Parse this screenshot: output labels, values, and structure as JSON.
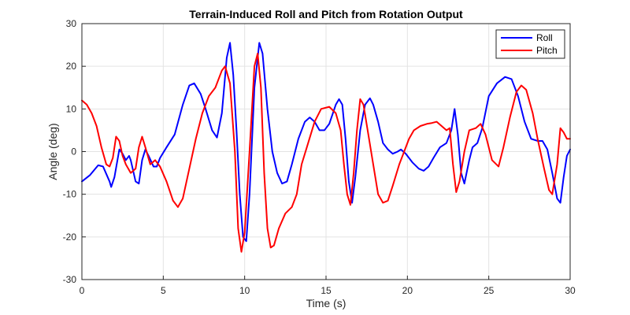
{
  "chart_data": {
    "type": "line",
    "title": "Terrain-Induced Roll and Pitch from Rotation Output",
    "xlabel": "Time (s)",
    "ylabel": "Angle (deg)",
    "xlim": [
      0,
      30
    ],
    "ylim": [
      -30,
      30
    ],
    "xticks": [
      0,
      5,
      10,
      15,
      20,
      25,
      30
    ],
    "yticks": [
      -30,
      -20,
      -10,
      0,
      10,
      20,
      30
    ],
    "xtick_labels": [
      "0",
      "5",
      "10",
      "15",
      "20",
      "25",
      "30"
    ],
    "ytick_labels": [
      "-30",
      "-20",
      "-10",
      "0",
      "10",
      "20",
      "30"
    ],
    "grid": true,
    "legend_position": "top-right",
    "series": [
      {
        "name": "Roll",
        "color": "#0000ff",
        "points": [
          [
            0,
            -7
          ],
          [
            0.5,
            -5.5
          ],
          [
            1,
            -3.2
          ],
          [
            1.3,
            -3.5
          ],
          [
            1.7,
            -7
          ],
          [
            1.8,
            -8.3
          ],
          [
            2,
            -6
          ],
          [
            2.3,
            0.5
          ],
          [
            2.5,
            -0.5
          ],
          [
            2.7,
            -2
          ],
          [
            2.9,
            -1
          ],
          [
            3,
            -2
          ],
          [
            3.3,
            -7
          ],
          [
            3.5,
            -7.5
          ],
          [
            3.7,
            -2
          ],
          [
            3.9,
            0.5
          ],
          [
            4.1,
            -1
          ],
          [
            4.4,
            -3.5
          ],
          [
            4.6,
            -3.5
          ],
          [
            4.8,
            -1.5
          ],
          [
            5.2,
            1
          ],
          [
            5.7,
            4
          ],
          [
            6.2,
            11
          ],
          [
            6.6,
            15.5
          ],
          [
            6.9,
            16
          ],
          [
            7.3,
            13.5
          ],
          [
            7.6,
            10
          ],
          [
            8,
            5
          ],
          [
            8.3,
            3.3
          ],
          [
            8.6,
            9
          ],
          [
            8.9,
            22
          ],
          [
            9.1,
            25.5
          ],
          [
            9.3,
            18
          ],
          [
            9.5,
            5
          ],
          [
            9.7,
            -10
          ],
          [
            9.9,
            -20
          ],
          [
            10.1,
            -21
          ],
          [
            10.3,
            -10
          ],
          [
            10.6,
            15
          ],
          [
            10.9,
            25.5
          ],
          [
            11.1,
            23
          ],
          [
            11.4,
            10
          ],
          [
            11.7,
            0
          ],
          [
            12,
            -5
          ],
          [
            12.3,
            -7.5
          ],
          [
            12.6,
            -7
          ],
          [
            12.9,
            -3
          ],
          [
            13.3,
            3
          ],
          [
            13.7,
            7
          ],
          [
            14,
            8
          ],
          [
            14.3,
            7
          ],
          [
            14.6,
            5
          ],
          [
            14.9,
            5
          ],
          [
            15.2,
            6.5
          ],
          [
            15.6,
            11
          ],
          [
            15.8,
            12.3
          ],
          [
            16,
            11
          ],
          [
            16.2,
            3
          ],
          [
            16.4,
            -7
          ],
          [
            16.6,
            -12
          ],
          [
            16.8,
            -6
          ],
          [
            17.1,
            5
          ],
          [
            17.4,
            11
          ],
          [
            17.7,
            12.5
          ],
          [
            17.9,
            11
          ],
          [
            18.2,
            7
          ],
          [
            18.5,
            2
          ],
          [
            18.8,
            0.5
          ],
          [
            19.1,
            -0.5
          ],
          [
            19.4,
            0
          ],
          [
            19.6,
            0.5
          ],
          [
            19.9,
            -0.5
          ],
          [
            20.3,
            -2.5
          ],
          [
            20.7,
            -4
          ],
          [
            21,
            -4.5
          ],
          [
            21.3,
            -3.5
          ],
          [
            21.6,
            -1.5
          ],
          [
            22,
            1
          ],
          [
            22.4,
            2
          ],
          [
            22.7,
            5
          ],
          [
            22.9,
            10
          ],
          [
            23.1,
            4
          ],
          [
            23.3,
            -5
          ],
          [
            23.5,
            -7.5
          ],
          [
            23.8,
            -2
          ],
          [
            24,
            1
          ],
          [
            24.3,
            2
          ],
          [
            24.6,
            5.5
          ],
          [
            25,
            13
          ],
          [
            25.5,
            16
          ],
          [
            26,
            17.5
          ],
          [
            26.4,
            17
          ],
          [
            26.8,
            13
          ],
          [
            27.2,
            7
          ],
          [
            27.6,
            3
          ],
          [
            28,
            2.5
          ],
          [
            28.3,
            2.5
          ],
          [
            28.6,
            0.5
          ],
          [
            28.9,
            -5
          ],
          [
            29.2,
            -11
          ],
          [
            29.4,
            -12
          ],
          [
            29.6,
            -6
          ],
          [
            29.8,
            -1
          ],
          [
            30,
            0.5
          ]
        ]
      },
      {
        "name": "Pitch",
        "color": "#ff0000",
        "points": [
          [
            0,
            12
          ],
          [
            0.3,
            11
          ],
          [
            0.6,
            9
          ],
          [
            0.9,
            6
          ],
          [
            1.2,
            1
          ],
          [
            1.5,
            -3
          ],
          [
            1.7,
            -3.5
          ],
          [
            1.9,
            -1.5
          ],
          [
            2.1,
            3.5
          ],
          [
            2.3,
            2.5
          ],
          [
            2.5,
            -1
          ],
          [
            2.7,
            -3
          ],
          [
            3,
            -5
          ],
          [
            3.3,
            -4
          ],
          [
            3.5,
            1
          ],
          [
            3.7,
            3.5
          ],
          [
            3.9,
            1
          ],
          [
            4.2,
            -3
          ],
          [
            4.5,
            -2
          ],
          [
            4.8,
            -3.5
          ],
          [
            5.2,
            -7
          ],
          [
            5.6,
            -11.5
          ],
          [
            5.9,
            -13
          ],
          [
            6.2,
            -11
          ],
          [
            6.6,
            -4
          ],
          [
            7,
            3
          ],
          [
            7.4,
            9
          ],
          [
            7.8,
            13
          ],
          [
            8.2,
            15
          ],
          [
            8.6,
            19
          ],
          [
            8.8,
            20
          ],
          [
            9.1,
            16
          ],
          [
            9.4,
            0
          ],
          [
            9.6,
            -18
          ],
          [
            9.8,
            -23.5
          ],
          [
            10,
            -19
          ],
          [
            10.3,
            0
          ],
          [
            10.6,
            20
          ],
          [
            10.8,
            23
          ],
          [
            11,
            15
          ],
          [
            11.2,
            -5
          ],
          [
            11.4,
            -18
          ],
          [
            11.6,
            -22.5
          ],
          [
            11.8,
            -22
          ],
          [
            12.1,
            -18
          ],
          [
            12.5,
            -14.5
          ],
          [
            12.9,
            -13
          ],
          [
            13.2,
            -10
          ],
          [
            13.5,
            -3
          ],
          [
            13.9,
            2
          ],
          [
            14.3,
            7
          ],
          [
            14.7,
            10
          ],
          [
            15.2,
            10.5
          ],
          [
            15.6,
            9
          ],
          [
            15.9,
            5
          ],
          [
            16.1,
            -3
          ],
          [
            16.3,
            -10
          ],
          [
            16.5,
            -12.5
          ],
          [
            16.7,
            -5
          ],
          [
            16.9,
            5
          ],
          [
            17.1,
            12.3
          ],
          [
            17.3,
            11
          ],
          [
            17.6,
            4
          ],
          [
            17.9,
            -3
          ],
          [
            18.2,
            -10
          ],
          [
            18.5,
            -12
          ],
          [
            18.8,
            -11.5
          ],
          [
            19.1,
            -8
          ],
          [
            19.5,
            -3
          ],
          [
            19.8,
            0
          ],
          [
            20.1,
            3
          ],
          [
            20.4,
            5
          ],
          [
            20.8,
            6
          ],
          [
            21.2,
            6.5
          ],
          [
            21.5,
            6.7
          ],
          [
            21.8,
            7
          ],
          [
            22.1,
            6
          ],
          [
            22.4,
            5
          ],
          [
            22.6,
            5.5
          ],
          [
            22.8,
            -3
          ],
          [
            23,
            -9.5
          ],
          [
            23.2,
            -7
          ],
          [
            23.5,
            0
          ],
          [
            23.8,
            5
          ],
          [
            24.2,
            5.5
          ],
          [
            24.5,
            6.5
          ],
          [
            24.8,
            4
          ],
          [
            25.2,
            -2
          ],
          [
            25.6,
            -3.5
          ],
          [
            25.9,
            1
          ],
          [
            26.3,
            8
          ],
          [
            26.7,
            14
          ],
          [
            27,
            15.5
          ],
          [
            27.3,
            14.5
          ],
          [
            27.7,
            9
          ],
          [
            28,
            3
          ],
          [
            28.4,
            -4
          ],
          [
            28.7,
            -9
          ],
          [
            28.9,
            -10
          ],
          [
            29.2,
            -3
          ],
          [
            29.4,
            5.5
          ],
          [
            29.6,
            4.5
          ],
          [
            29.8,
            3
          ],
          [
            30,
            3
          ]
        ]
      }
    ]
  }
}
